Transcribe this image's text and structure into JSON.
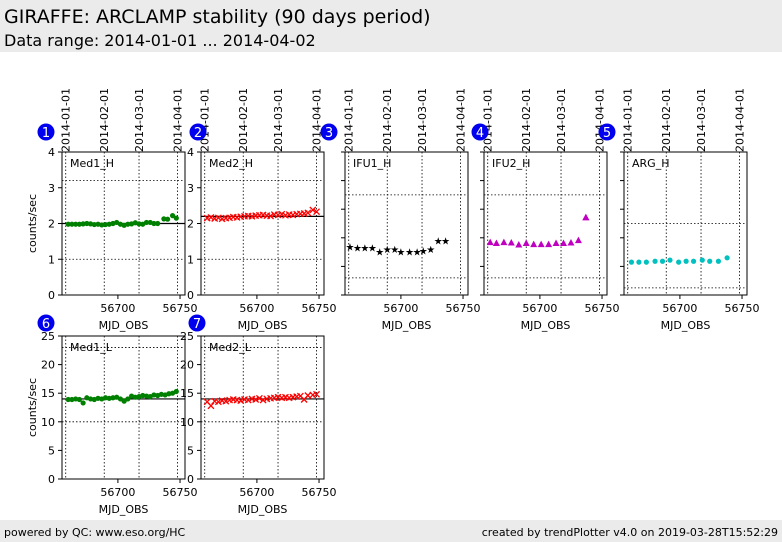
{
  "header": {
    "title": "GIRAFFE: ARCLAMP stability (90 days period)",
    "subtitle": "Data range: 2014-01-01 ... 2014-04-02"
  },
  "footer": {
    "left": "powered by QC: www.eso.org/HC",
    "right": "created by trendPlotter v4.0 on 2019-03-28T15:52:29"
  },
  "chart_data": [
    {
      "type": "scatter",
      "badge": "1",
      "label": "Med1_H",
      "color": "#008000",
      "marker": "circle",
      "ylabel": "counts/sec",
      "xlabel": "MJD_OBS",
      "xlim": [
        56655,
        56754
      ],
      "ylim": [
        0,
        4
      ],
      "yticks": [
        0,
        1,
        2,
        3,
        4
      ],
      "xticks": [
        56700,
        56750
      ],
      "date_ticks": [
        "2014-01-01",
        "2014-02-01",
        "2014-03-01",
        "2014-04-01"
      ],
      "date_tick_mjd": [
        56658,
        56689,
        56717,
        56748
      ],
      "ref_line": 2.0,
      "limits": [
        1.0,
        3.2
      ],
      "x": [
        56660,
        56663,
        56666,
        56669,
        56672,
        56675,
        56678,
        56681,
        56684,
        56687,
        56690,
        56693,
        56696,
        56699,
        56702,
        56705,
        56708,
        56711,
        56714,
        56717,
        56720,
        56723,
        56726,
        56729,
        56732,
        56737,
        56740,
        56744,
        56747
      ],
      "y": [
        1.98,
        1.98,
        1.98,
        1.98,
        1.99,
        2.0,
        1.99,
        1.97,
        1.98,
        1.96,
        1.97,
        1.98,
        2.0,
        2.03,
        1.98,
        1.95,
        1.98,
        1.99,
        2.02,
        1.99,
        1.98,
        2.03,
        2.03,
        2.0,
        2.0,
        2.13,
        2.12,
        2.22,
        2.15
      ]
    },
    {
      "type": "scatter",
      "badge": "2",
      "label": "Med2_H",
      "color": "#ff0000",
      "marker": "x",
      "xlabel": "MJD_OBS",
      "xlim": [
        56655,
        56754
      ],
      "ylim": [
        0,
        4
      ],
      "yticks": [
        0,
        1,
        2,
        3,
        4
      ],
      "xticks": [
        56700,
        56750
      ],
      "date_ticks": [
        "2014-01-01",
        "2014-02-01",
        "2014-03-01",
        "2014-04-01"
      ],
      "date_tick_mjd": [
        56658,
        56689,
        56717,
        56748
      ],
      "ref_line": 2.2,
      "limits": [
        1.0,
        3.2
      ],
      "x": [
        56660,
        56663,
        56666,
        56669,
        56672,
        56675,
        56678,
        56681,
        56684,
        56687,
        56690,
        56693,
        56696,
        56699,
        56702,
        56705,
        56708,
        56711,
        56714,
        56717,
        56720,
        56723,
        56726,
        56729,
        56732,
        56735,
        56738,
        56741,
        56745,
        56748
      ],
      "y": [
        2.15,
        2.17,
        2.14,
        2.16,
        2.13,
        2.15,
        2.16,
        2.18,
        2.17,
        2.19,
        2.2,
        2.21,
        2.2,
        2.22,
        2.23,
        2.24,
        2.22,
        2.21,
        2.25,
        2.24,
        2.26,
        2.23,
        2.25,
        2.24,
        2.26,
        2.27,
        2.28,
        2.3,
        2.38,
        2.33
      ]
    },
    {
      "type": "scatter",
      "badge": "3",
      "label": "IFU1_H",
      "color": "#000000",
      "marker": "star",
      "xlabel": "MJD_OBS",
      "xlim": [
        56655,
        56754
      ],
      "ylim": [
        0,
        5
      ],
      "yticks": [
        0,
        1,
        2,
        3,
        4,
        5
      ],
      "show_ytick_labels": false,
      "xticks": [
        56700,
        56750
      ],
      "date_ticks": [
        "2014-01-01",
        "2014-02-01",
        "2014-03-01",
        "2014-04-01"
      ],
      "date_tick_mjd": [
        56658,
        56689,
        56717,
        56748
      ],
      "limits": [
        0.6,
        3.5
      ],
      "x": [
        56659,
        56665,
        56671,
        56677,
        56683,
        56689,
        56695,
        56700,
        56707,
        56713,
        56718,
        56724,
        56730,
        56736
      ],
      "y": [
        1.7,
        1.66,
        1.66,
        1.66,
        1.52,
        1.6,
        1.6,
        1.52,
        1.52,
        1.52,
        1.56,
        1.6,
        1.9,
        1.9
      ]
    },
    {
      "type": "scatter",
      "badge": "4",
      "label": "IFU2_H",
      "color": "#c000c0",
      "marker": "triangle",
      "xlabel": "MJD_OBS",
      "xlim": [
        56655,
        56754
      ],
      "ylim": [
        0,
        5
      ],
      "yticks": [
        0,
        1,
        2,
        3,
        4,
        5
      ],
      "show_ytick_labels": false,
      "xticks": [
        56700,
        56750
      ],
      "date_ticks": [
        "2014-01-01",
        "2014-02-01",
        "2014-03-01",
        "2014-04-01"
      ],
      "date_tick_mjd": [
        56658,
        56689,
        56717,
        56748
      ],
      "limits": [
        0.6,
        3.5
      ],
      "x": [
        56660,
        56665,
        56671,
        56677,
        56683,
        56689,
        56695,
        56701,
        56707,
        56713,
        56719,
        56725,
        56731,
        56737,
        56737
      ],
      "y": [
        1.83,
        1.8,
        1.83,
        1.82,
        1.75,
        1.8,
        1.76,
        1.76,
        1.76,
        1.8,
        1.8,
        1.82,
        1.9,
        2.7,
        2.7
      ]
    },
    {
      "type": "scatter",
      "badge": "5",
      "label": "ARG_H",
      "color": "#00c0c0",
      "marker": "circle",
      "xlabel": "MJD_OBS",
      "xlim": [
        56655,
        56754
      ],
      "ylim": [
        0,
        5
      ],
      "yticks": [
        0,
        1,
        2,
        3,
        4,
        5
      ],
      "show_ytick_labels": false,
      "xticks": [
        56700,
        56750
      ],
      "date_ticks": [
        "2014-01-01",
        "2014-02-01",
        "2014-03-01",
        "2014-04-01"
      ],
      "date_tick_mjd": [
        56658,
        56689,
        56717,
        56748
      ],
      "limits": [
        0.25,
        2.5
      ],
      "x": [
        56661,
        56667,
        56673,
        56680,
        56686,
        56692,
        56699,
        56705,
        56711,
        56718,
        56724,
        56731,
        56738
      ],
      "y": [
        1.15,
        1.15,
        1.15,
        1.18,
        1.18,
        1.22,
        1.15,
        1.18,
        1.18,
        1.22,
        1.18,
        1.18,
        1.3
      ]
    },
    {
      "type": "scatter",
      "badge": "6",
      "label": "Med1_L",
      "color": "#008000",
      "marker": "circle",
      "ylabel": "counts/sec",
      "xlabel": "MJD_OBS",
      "xlim": [
        56655,
        56754
      ],
      "ylim": [
        0,
        25
      ],
      "yticks": [
        0,
        5,
        10,
        15,
        20,
        25
      ],
      "xticks": [
        56700,
        56750
      ],
      "date_tick_mjd": [
        56658,
        56689,
        56717,
        56748
      ],
      "ref_line": 14.0,
      "limits": [
        10,
        23
      ],
      "x": [
        56660,
        56663,
        56666,
        56669,
        56672,
        56675,
        56678,
        56681,
        56684,
        56687,
        56690,
        56693,
        56696,
        56699,
        56702,
        56705,
        56708,
        56711,
        56714,
        56717,
        56720,
        56723,
        56726,
        56729,
        56732,
        56735,
        56738,
        56741,
        56744,
        56747
      ],
      "y": [
        13.9,
        13.9,
        14.0,
        13.9,
        13.3,
        14.2,
        14.0,
        13.9,
        14.1,
        14.0,
        14.2,
        14.1,
        14.2,
        14.3,
        14.0,
        13.6,
        14.0,
        14.5,
        14.3,
        14.4,
        14.6,
        14.5,
        14.4,
        14.7,
        14.6,
        14.8,
        14.7,
        14.9,
        15.0,
        15.3
      ]
    },
    {
      "type": "scatter",
      "badge": "7",
      "label": "Med2_L",
      "color": "#ff0000",
      "marker": "x",
      "xlabel": "MJD_OBS",
      "xlim": [
        56655,
        56754
      ],
      "ylim": [
        0,
        25
      ],
      "yticks": [
        0,
        5,
        10,
        15,
        20,
        25
      ],
      "xticks": [
        56700,
        56750
      ],
      "date_tick_mjd": [
        56658,
        56689,
        56717,
        56748
      ],
      "ref_line": 14.0,
      "limits": [
        10,
        23
      ],
      "x": [
        56660,
        56663,
        56666,
        56669,
        56672,
        56675,
        56678,
        56681,
        56684,
        56687,
        56690,
        56693,
        56696,
        56699,
        56702,
        56705,
        56708,
        56711,
        56714,
        56717,
        56720,
        56723,
        56726,
        56729,
        56732,
        56735,
        56738,
        56741,
        56745,
        56748
      ],
      "y": [
        13.5,
        12.8,
        13.6,
        13.5,
        13.7,
        13.6,
        13.8,
        13.9,
        13.8,
        13.7,
        13.9,
        13.8,
        14.0,
        13.9,
        14.1,
        13.8,
        14.0,
        14.1,
        14.2,
        14.3,
        14.2,
        14.3,
        14.2,
        14.3,
        14.4,
        14.5,
        13.9,
        14.6,
        14.7,
        14.8
      ]
    }
  ]
}
